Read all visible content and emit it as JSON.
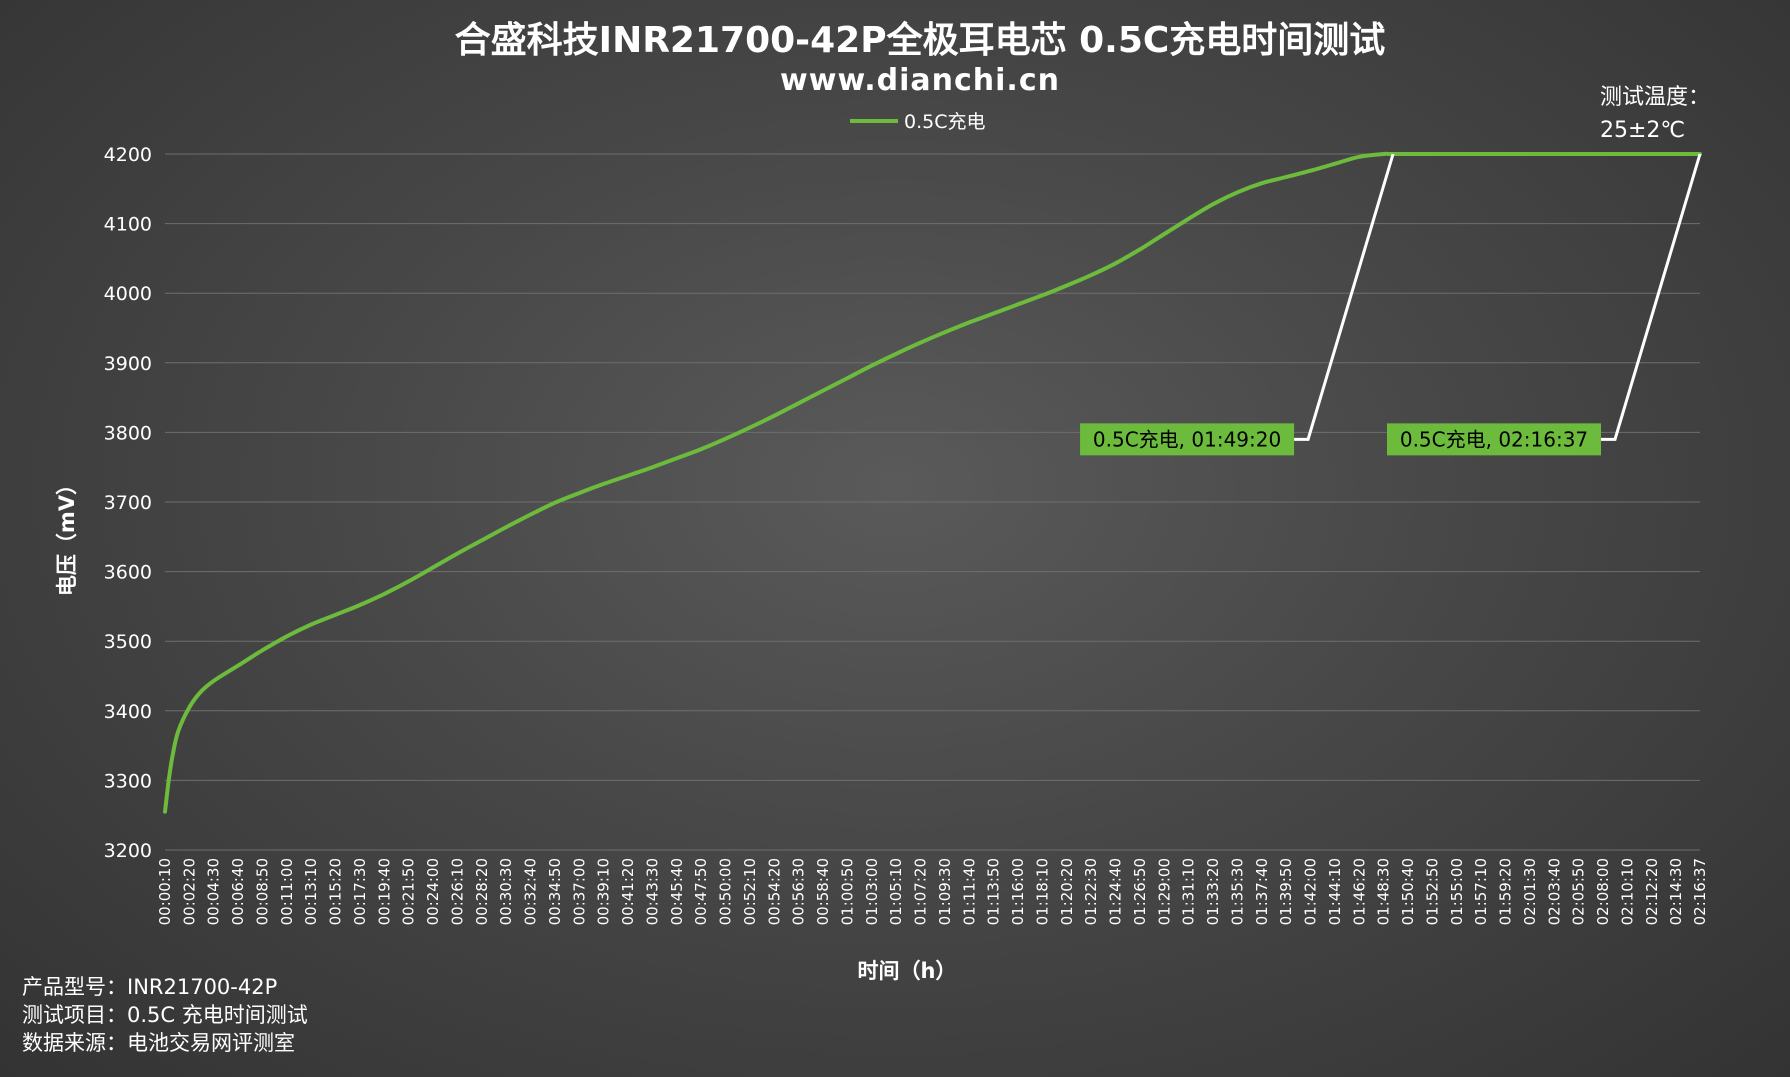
{
  "chart_data": {
    "type": "line",
    "title": "合盛科技INR21700-42P全极耳电芯 0.5C充电时间测试",
    "subtitle": "www.dianchi.cn",
    "xlabel": "时间（h）",
    "ylabel": "电压（mV）",
    "ylim": [
      3200,
      4200
    ],
    "yticks": [
      3200,
      3300,
      3400,
      3500,
      3600,
      3700,
      3800,
      3900,
      4000,
      4100,
      4200
    ],
    "grid": true,
    "legend_position": "top-center",
    "line_color": "#6cbb3c",
    "xticks": [
      "00:00:10",
      "00:02:20",
      "00:04:30",
      "00:06:40",
      "00:08:50",
      "00:11:00",
      "00:13:10",
      "00:15:20",
      "00:17:30",
      "00:19:40",
      "00:21:50",
      "00:24:00",
      "00:26:10",
      "00:28:20",
      "00:30:30",
      "00:32:40",
      "00:34:50",
      "00:37:00",
      "00:39:10",
      "00:41:20",
      "00:43:30",
      "00:45:40",
      "00:47:50",
      "00:50:00",
      "00:52:10",
      "00:54:20",
      "00:56:30",
      "00:58:40",
      "01:00:50",
      "01:03:00",
      "01:05:10",
      "01:07:20",
      "01:09:30",
      "01:11:40",
      "01:13:50",
      "01:16:00",
      "01:18:10",
      "01:20:20",
      "01:22:30",
      "01:24:40",
      "01:26:50",
      "01:29:00",
      "01:31:10",
      "01:33:20",
      "01:35:30",
      "01:37:40",
      "01:39:50",
      "01:42:00",
      "01:44:10",
      "01:46:20",
      "01:48:30",
      "01:50:40",
      "01:52:50",
      "01:55:00",
      "01:57:10",
      "01:59:20",
      "02:01:30",
      "02:03:40",
      "02:05:50",
      "02:08:00",
      "02:10:10",
      "02:12:20",
      "02:14:30",
      "02:16:37"
    ],
    "series": [
      {
        "name": "0.5C充电",
        "x": [
          "00:00:10",
          "00:00:30",
          "00:00:50",
          "00:01:20",
          "00:02:20",
          "00:03:20",
          "00:04:30",
          "00:06:40",
          "00:08:50",
          "00:11:00",
          "00:13:10",
          "00:15:20",
          "00:17:30",
          "00:19:40",
          "00:21:50",
          "00:24:00",
          "00:26:10",
          "00:28:20",
          "00:30:30",
          "00:32:40",
          "00:34:50",
          "00:37:00",
          "00:39:10",
          "00:41:20",
          "00:43:30",
          "00:45:40",
          "00:47:50",
          "00:50:00",
          "00:52:10",
          "00:54:20",
          "00:56:30",
          "00:58:40",
          "01:00:50",
          "01:03:00",
          "01:05:10",
          "01:07:20",
          "01:09:30",
          "01:11:40",
          "01:13:50",
          "01:16:00",
          "01:18:10",
          "01:20:20",
          "01:22:30",
          "01:24:40",
          "01:26:50",
          "01:29:00",
          "01:31:10",
          "01:33:20",
          "01:35:30",
          "01:37:40",
          "01:39:50",
          "01:42:00",
          "01:44:10",
          "01:46:20",
          "01:48:30",
          "01:49:20",
          "01:52:50",
          "01:57:10",
          "02:01:30",
          "02:05:50",
          "02:10:10",
          "02:14:30",
          "02:16:37"
        ],
        "values": [
          3255,
          3300,
          3335,
          3370,
          3405,
          3427,
          3443,
          3465,
          3487,
          3507,
          3524,
          3538,
          3552,
          3568,
          3586,
          3606,
          3626,
          3645,
          3664,
          3682,
          3699,
          3713,
          3726,
          3738,
          3750,
          3763,
          3776,
          3791,
          3807,
          3824,
          3842,
          3860,
          3878,
          3896,
          3913,
          3929,
          3944,
          3958,
          3971,
          3984,
          3997,
          4011,
          4026,
          4043,
          4063,
          4085,
          4107,
          4128,
          4145,
          4158,
          4167,
          4176,
          4186,
          4196,
          4200,
          4200,
          4200,
          4200,
          4200,
          4200,
          4200,
          4200,
          4200
        ]
      }
    ],
    "annotations": [
      {
        "text": "0.5C充电, 01:49:20",
        "x": "01:49:20",
        "y": 4200
      },
      {
        "text": "0.5C充电, 02:16:37",
        "x": "02:16:37",
        "y": 4200
      }
    ],
    "note": [
      "测试温度：",
      "25±2℃"
    ]
  },
  "footer": {
    "product": "产品型号：INR21700-42P",
    "item": "测试项目：0.5C 充电时间测试",
    "source": "数据来源：电池交易网评测室"
  }
}
